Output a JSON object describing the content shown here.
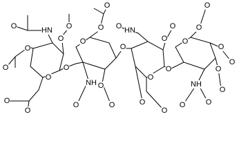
{
  "atoms": {
    "labels": [
      "O",
      "HN",
      "O",
      "O",
      "O",
      "O",
      "O",
      "O",
      "O",
      "O",
      "O",
      "O",
      "O",
      "O",
      "O",
      "NH",
      "O",
      "O",
      "HN",
      "O",
      "O",
      "O",
      "O",
      "O",
      "O",
      "O",
      "O",
      "O",
      "O",
      "O",
      "O",
      "O",
      "NH",
      "O",
      "O",
      "O"
    ]
  }
}
